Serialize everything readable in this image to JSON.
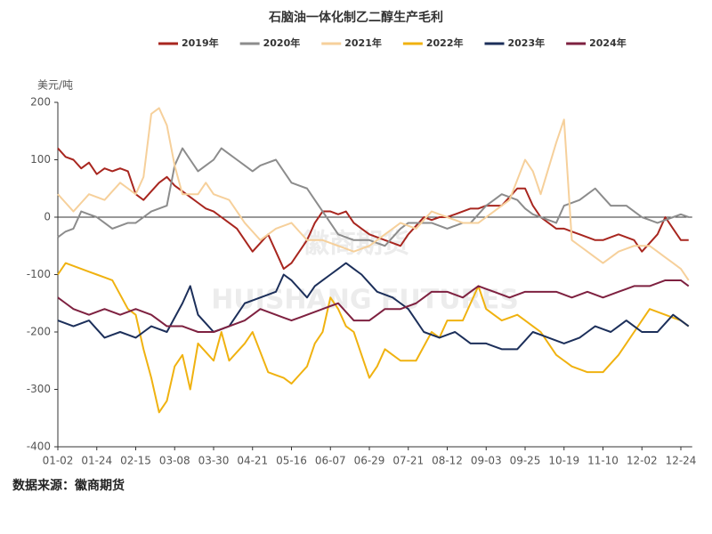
{
  "chart_data": {
    "type": "line",
    "title": "石脑油一体化制乙二醇生产毛利",
    "y_unit": "美元/吨",
    "source": "数据来源：徽商期货",
    "watermark": [
      "徽商期货",
      "HUISHANG FUTURES"
    ],
    "categories": [
      "01-02",
      null,
      null,
      null,
      null,
      "01-24",
      null,
      null,
      null,
      null,
      "02-15",
      null,
      null,
      null,
      null,
      "03-08",
      null,
      null,
      null,
      null,
      "03-30",
      null,
      null,
      null,
      null,
      "04-21",
      null,
      null,
      null,
      null,
      "05-16",
      null,
      null,
      null,
      null,
      "06-07",
      null,
      null,
      null,
      null,
      "06-29",
      null,
      null,
      null,
      null,
      "07-21",
      null,
      null,
      null,
      null,
      "08-12",
      null,
      null,
      null,
      null,
      "09-03",
      null,
      null,
      null,
      null,
      "09-25",
      null,
      null,
      null,
      null,
      "10-19",
      null,
      null,
      null,
      null,
      "11-10",
      null,
      null,
      null,
      null,
      "12-02",
      null,
      null,
      null,
      null,
      "12-24",
      null
    ],
    "ylim": [
      -400,
      200
    ],
    "yticks": [
      -400,
      -300,
      -200,
      -100,
      0,
      100,
      200
    ],
    "grid": false,
    "legend": "top",
    "series": [
      {
        "name": "2019年",
        "color": "#a8261f",
        "values": [
          120,
          105,
          100,
          85,
          95,
          75,
          85,
          80,
          85,
          80,
          40,
          30,
          45,
          60,
          70,
          55,
          45,
          35,
          25,
          15,
          10,
          0,
          -10,
          -20,
          -40,
          -60,
          -45,
          -30,
          -60,
          -90,
          -80,
          -60,
          -40,
          -10,
          10,
          10,
          5,
          10,
          -10,
          -20,
          -30,
          -35,
          -40,
          -45,
          -50,
          -30,
          -15,
          0,
          -5,
          0,
          0,
          5,
          10,
          15,
          15,
          20,
          20,
          20,
          35,
          50,
          50,
          20,
          0,
          -10,
          -20,
          -20,
          -25,
          -30,
          -35,
          -40,
          -40,
          -35,
          -30,
          -35,
          -40,
          -60,
          -45,
          -30,
          0,
          -20,
          -40,
          -40
        ]
      },
      {
        "name": "2020年",
        "color": "#8c8c8c",
        "values": [
          -35,
          -25,
          -20,
          10,
          5,
          0,
          -10,
          -20,
          -15,
          -10,
          -10,
          0,
          10,
          15,
          20,
          90,
          120,
          100,
          80,
          90,
          100,
          120,
          110,
          100,
          90,
          80,
          90,
          95,
          100,
          80,
          60,
          55,
          50,
          30,
          10,
          -10,
          -30,
          -35,
          -40,
          -40,
          -40,
          -45,
          -50,
          -35,
          -20,
          -10,
          -10,
          -10,
          -10,
          -15,
          -20,
          -15,
          -10,
          -10,
          5,
          20,
          30,
          40,
          35,
          30,
          15,
          5,
          0,
          -5,
          -10,
          20,
          25,
          30,
          40,
          50,
          35,
          20,
          20,
          20,
          10,
          0,
          -5,
          -10,
          -5,
          0,
          5,
          0
        ]
      },
      {
        "name": "2021年",
        "color": "#f6d09b",
        "values": [
          40,
          25,
          10,
          25,
          40,
          35,
          30,
          45,
          60,
          50,
          40,
          70,
          180,
          190,
          160,
          90,
          40,
          40,
          40,
          60,
          40,
          35,
          30,
          10,
          -10,
          -25,
          -40,
          -30,
          -20,
          -15,
          -10,
          -25,
          -40,
          -40,
          -40,
          -45,
          -50,
          -55,
          -60,
          -55,
          -50,
          -40,
          -30,
          -20,
          -10,
          -15,
          -20,
          -5,
          10,
          5,
          0,
          -5,
          -10,
          -10,
          -10,
          0,
          10,
          20,
          30,
          65,
          100,
          80,
          40,
          85,
          130,
          170,
          -40,
          -50,
          -60,
          -70,
          -80,
          -70,
          -60,
          -55,
          -50,
          -50,
          -50,
          -60,
          -70,
          -80,
          -90,
          -110
        ]
      },
      {
        "name": "2022年",
        "color": "#f0b210",
        "values": [
          -100,
          -80,
          -85,
          -90,
          -95,
          -100,
          -105,
          -110,
          -135,
          -160,
          -170,
          -230,
          -280,
          -340,
          -320,
          -260,
          -240,
          -300,
          -220,
          -235,
          -250,
          -200,
          -250,
          -235,
          -220,
          -200,
          -235,
          -270,
          -275,
          -280,
          -290,
          -275,
          -260,
          -220,
          -200,
          -140,
          -160,
          -190,
          -200,
          -240,
          -280,
          -260,
          -230,
          -240,
          -250,
          -250,
          -250,
          -225,
          -200,
          -210,
          -180,
          -180,
          -180,
          -150,
          -120,
          -160,
          -170,
          -180,
          -175,
          -170,
          -180,
          -190,
          -200,
          -220,
          -240,
          -250,
          -260,
          -265,
          -270,
          -270,
          -270,
          -255,
          -240,
          -220,
          -200,
          -180,
          -160,
          -165,
          -170,
          -175,
          -180,
          -190
        ]
      },
      {
        "name": "2023年",
        "color": "#1c2f5a",
        "values": [
          -180,
          -185,
          -190,
          -185,
          -180,
          -195,
          -210,
          -205,
          -200,
          -205,
          -210,
          -200,
          -190,
          -195,
          -200,
          -175,
          -150,
          -120,
          -170,
          -185,
          -200,
          -195,
          -190,
          -170,
          -150,
          -145,
          -140,
          -135,
          -130,
          -100,
          -110,
          -125,
          -140,
          -120,
          -110,
          -100,
          -90,
          -80,
          -90,
          -100,
          -115,
          -130,
          -135,
          -140,
          -150,
          -160,
          -180,
          -200,
          -205,
          -210,
          -205,
          -200,
          -210,
          -220,
          -220,
          -220,
          -225,
          -230,
          -230,
          -230,
          -215,
          -200,
          -205,
          -210,
          -215,
          -220,
          -215,
          -210,
          -200,
          -190,
          -195,
          -200,
          -190,
          -180,
          -190,
          -200,
          -200,
          -200,
          -185,
          -170,
          -180,
          -190
        ]
      },
      {
        "name": "2024年",
        "color": "#7e2140",
        "values": [
          -140,
          -150,
          -160,
          -165,
          -170,
          -165,
          -160,
          -165,
          -170,
          -165,
          -160,
          -165,
          -170,
          -180,
          -190,
          -190,
          -190,
          -195,
          -200,
          -200,
          -200,
          -195,
          -190,
          -185,
          -180,
          -170,
          -160,
          -165,
          -170,
          -175,
          -180,
          -175,
          -170,
          -165,
          -160,
          -155,
          -150,
          -165,
          -180,
          -180,
          -180,
          -170,
          -160,
          -160,
          -160,
          -155,
          -150,
          -140,
          -130,
          -130,
          -130,
          -135,
          -140,
          -130,
          -120,
          -125,
          -130,
          -135,
          -140,
          -135,
          -130,
          -130,
          -130,
          -130,
          -130,
          -135,
          -140,
          -135,
          -130,
          -135,
          -140,
          -135,
          -130,
          -125,
          -120,
          -120,
          -120,
          -115,
          -110,
          -110,
          -110,
          -120
        ]
      }
    ]
  }
}
